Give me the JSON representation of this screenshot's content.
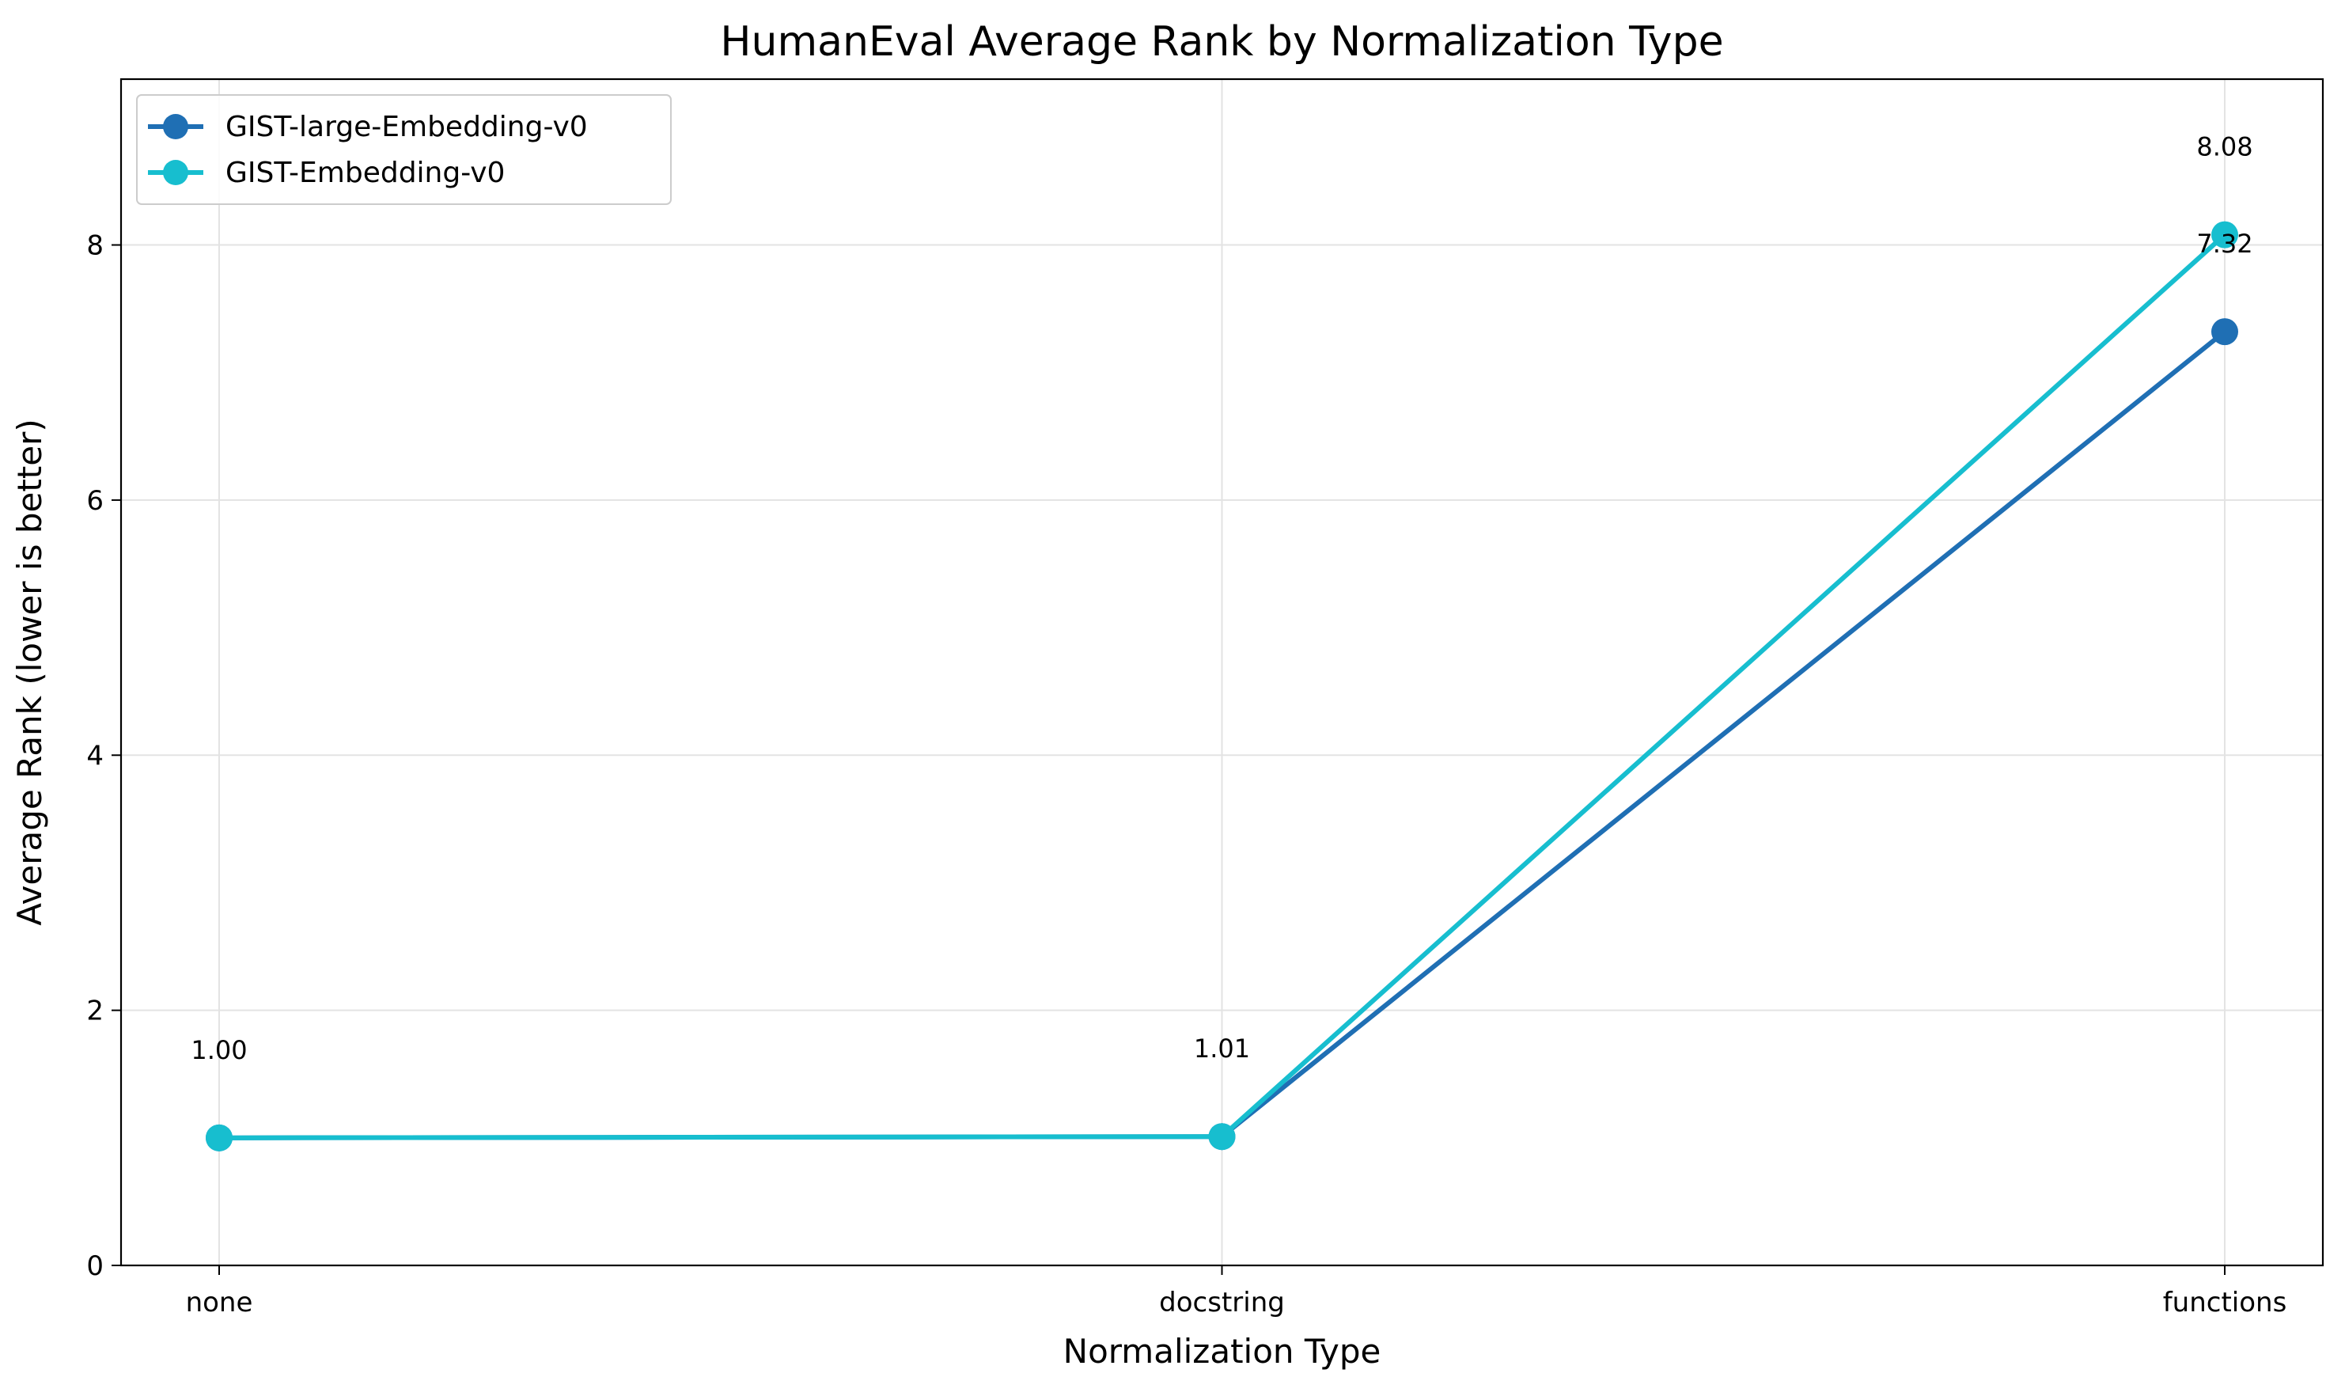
{
  "chart_data": {
    "type": "line",
    "title": "HumanEval Average Rank by Normalization Type",
    "xlabel": "Normalization Type",
    "ylabel": "Average Rank (lower is better)",
    "categories": [
      "none",
      "docstring",
      "functions"
    ],
    "ylim": [
      0,
      9.3
    ],
    "yticks": [
      0,
      2,
      4,
      6,
      8
    ],
    "grid": true,
    "legend_position": "top-left",
    "series": [
      {
        "name": "GIST-large-Embedding-v0",
        "color": "#1f6fb4",
        "values": [
          1.0,
          1.01,
          7.32
        ]
      },
      {
        "name": "GIST-Embedding-v0",
        "color": "#17becf",
        "values": [
          1.0,
          1.01,
          8.08
        ]
      }
    ],
    "annotations": [
      {
        "category": "none",
        "value": 1.0,
        "text": "1.00"
      },
      {
        "category": "docstring",
        "value": 1.01,
        "text": "1.01"
      },
      {
        "category": "functions",
        "value": 7.32,
        "text": "7.32"
      },
      {
        "category": "functions",
        "value": 8.08,
        "text": "8.08"
      }
    ]
  }
}
